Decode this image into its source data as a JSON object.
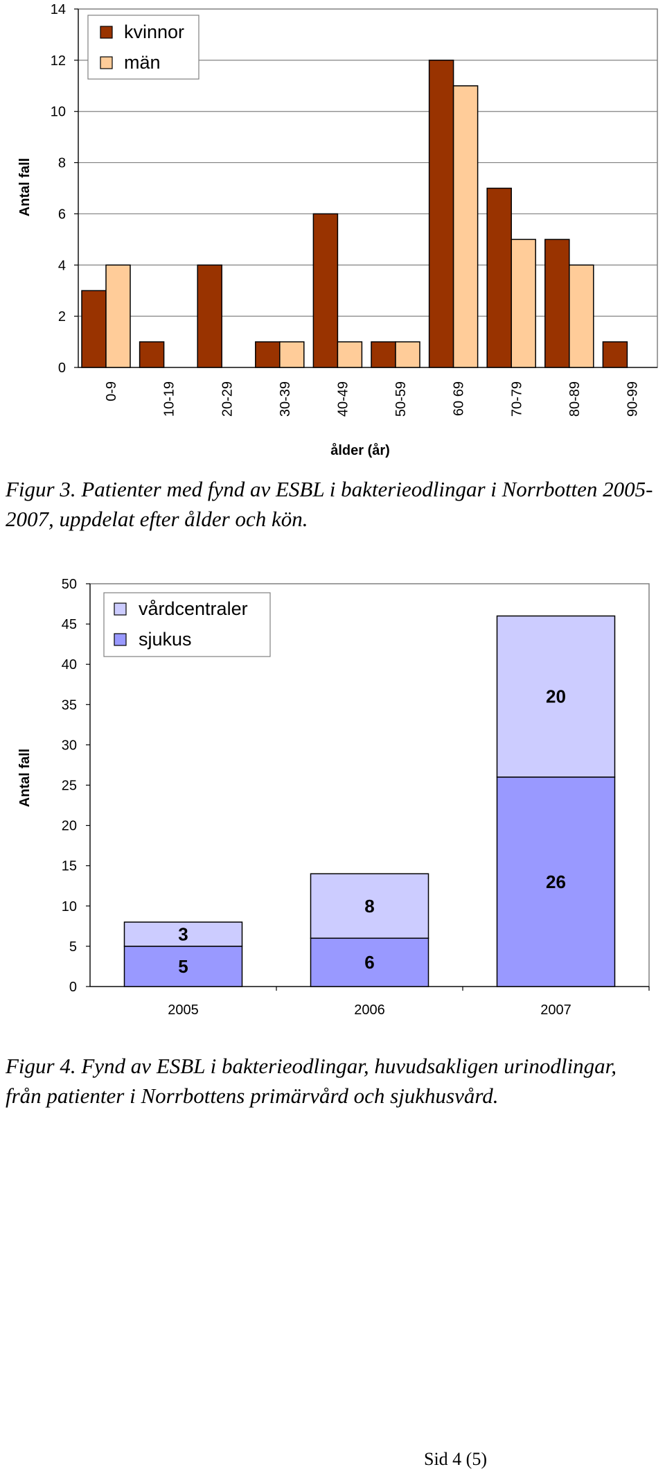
{
  "charts": [
    {
      "id": "fig3",
      "chart_data": {
        "type": "bar",
        "categories": [
          "0-9",
          "10-19",
          "20-29",
          "30-39",
          "40-49",
          "50-59",
          "60 69",
          "70-79",
          "80-89",
          "90-99"
        ],
        "series": [
          {
            "name": "kvinnor",
            "values": [
              3,
              1,
              4,
              1,
              6,
              1,
              12,
              7,
              5,
              1
            ],
            "color": "#993300"
          },
          {
            "name": "män",
            "values": [
              4,
              0,
              0,
              1,
              1,
              1,
              11,
              5,
              4,
              0
            ],
            "color": "#FFCC99"
          }
        ],
        "xlabel": "ålder (år)",
        "ylabel": "Antal fall",
        "ylim": [
          0,
          14
        ],
        "yticks": [
          0,
          2,
          4,
          6,
          8,
          10,
          12,
          14
        ],
        "legend": "top-left",
        "grid": true
      }
    },
    {
      "id": "fig4",
      "chart_data": {
        "type": "bar",
        "stacked": true,
        "categories": [
          "2005",
          "2006",
          "2007"
        ],
        "series": [
          {
            "name": "sjukus",
            "values": [
              5,
              6,
              26
            ],
            "color": "#9999FF"
          },
          {
            "name": "vårdcentraler",
            "values": [
              3,
              8,
              20
            ],
            "color": "#CCCCFF"
          }
        ],
        "legend_order": [
          "vårdcentraler",
          "sjukus"
        ],
        "ylabel": "Antal fall",
        "ylim": [
          0,
          50
        ],
        "yticks": [
          0,
          5,
          10,
          15,
          20,
          25,
          30,
          35,
          40,
          45,
          50
        ],
        "legend": "top-left",
        "grid": false,
        "data_labels": true
      }
    }
  ],
  "captions": {
    "fig3": "Figur 3.  Patienter med fynd av ESBL i bakterieodlingar i Norrbotten 2005-2007, uppdelat efter ålder och kön.",
    "fig4": "Figur 4.  Fynd av ESBL i bakterieodlingar, huvudsakligen urin­odlingar, från patienter i Norrbottens primärvård och sjukhus­vård."
  },
  "footer": "Sid 4 (5)"
}
